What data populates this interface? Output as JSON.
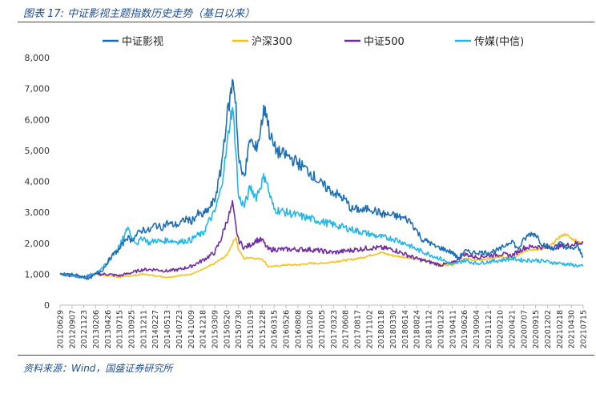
{
  "figure": {
    "title": "图表 17:  中证影视主题指数历史走势（基日以来）",
    "source": "资料来源：Wind，国盛证券研究所"
  },
  "chart_data": {
    "type": "line",
    "title": "",
    "xlabel": "",
    "ylabel": "",
    "ylim": [
      0,
      8000
    ],
    "yticks": [
      0,
      1000,
      2000,
      3000,
      4000,
      5000,
      6000,
      7000,
      8000
    ],
    "ytick_labels": [
      "0",
      "1,000",
      "2,000",
      "3,000",
      "4,000",
      "5,000",
      "6,000",
      "7,000",
      "8,000"
    ],
    "x_tick_labels": [
      "20120629",
      "20120907",
      "20121123",
      "20130206",
      "20130426",
      "20130715",
      "20130925",
      "20131211",
      "20140227",
      "20140513",
      "20140723",
      "20141009",
      "20141218",
      "20150309",
      "20150520",
      "20150730",
      "20151019",
      "20151228",
      "20160315",
      "20160526",
      "20160808",
      "20161020",
      "20170105",
      "20170323",
      "20170608",
      "20170817",
      "20171102",
      "20180118",
      "20180330",
      "20180614",
      "20180824",
      "20181112",
      "20190123",
      "20190411",
      "20190626",
      "20190904",
      "20191121",
      "20200210",
      "20200421",
      "20200707",
      "20200915",
      "20201202",
      "20210218",
      "20210430",
      "20210715"
    ],
    "legend": [
      "中证影视",
      "沪深300",
      "中证500",
      "传媒(中信)"
    ],
    "legend_position": "top",
    "grid": false,
    "colors": {
      "中证影视": "#1f6fb4",
      "沪深300": "#f5c21b",
      "中证500": "#7030a0",
      "传媒(中信)": "#27b6e6"
    },
    "series": [
      {
        "name": "中证影视",
        "anchors": [
          [
            0,
            1000
          ],
          [
            1,
            1000
          ],
          [
            1.6,
            950
          ],
          [
            2,
            900
          ],
          [
            2.4,
            850
          ],
          [
            3,
            1000
          ],
          [
            3.6,
            1150
          ],
          [
            4,
            1400
          ],
          [
            4.5,
            1650
          ],
          [
            5,
            1800
          ],
          [
            5.6,
            2200
          ],
          [
            6,
            2100
          ],
          [
            6.5,
            2300
          ],
          [
            7,
            2450
          ],
          [
            7.5,
            2400
          ],
          [
            8,
            2600
          ],
          [
            8.5,
            2500
          ],
          [
            9,
            2650
          ],
          [
            9.5,
            2600
          ],
          [
            10,
            2600
          ],
          [
            10.6,
            2800
          ],
          [
            11,
            2700
          ],
          [
            11.6,
            2950
          ],
          [
            12,
            2900
          ],
          [
            12.5,
            3100
          ],
          [
            13,
            3400
          ],
          [
            13.5,
            4300
          ],
          [
            14,
            6000
          ],
          [
            14.3,
            6700
          ],
          [
            14.55,
            7300
          ],
          [
            14.8,
            6500
          ],
          [
            15,
            4800
          ],
          [
            15.3,
            4200
          ],
          [
            15.6,
            4400
          ],
          [
            16,
            5400
          ],
          [
            16.4,
            5000
          ],
          [
            16.8,
            5500
          ],
          [
            17,
            6000
          ],
          [
            17.25,
            6450
          ],
          [
            17.6,
            5600
          ],
          [
            18,
            5100
          ],
          [
            18.5,
            4900
          ],
          [
            19,
            4850
          ],
          [
            20,
            4600
          ],
          [
            21,
            4300
          ],
          [
            22,
            3900
          ],
          [
            23,
            3650
          ],
          [
            24,
            3400
          ],
          [
            24.5,
            3100
          ],
          [
            25,
            3100
          ],
          [
            25.5,
            3050
          ],
          [
            26,
            3150
          ],
          [
            27,
            2950
          ],
          [
            28,
            2900
          ],
          [
            29,
            2800
          ],
          [
            29.5,
            2700
          ],
          [
            30,
            2400
          ],
          [
            30.5,
            2100
          ],
          [
            31,
            2050
          ],
          [
            31.5,
            1900
          ],
          [
            32,
            1850
          ],
          [
            33,
            1700
          ],
          [
            33.5,
            1500
          ],
          [
            34,
            1750
          ],
          [
            34.5,
            1700
          ],
          [
            35,
            1700
          ],
          [
            36,
            1700
          ],
          [
            37,
            1800
          ],
          [
            38,
            2100
          ],
          [
            38.5,
            1800
          ],
          [
            39,
            2100
          ],
          [
            39.5,
            2300
          ],
          [
            40,
            2300
          ],
          [
            40.5,
            2000
          ],
          [
            41,
            1900
          ],
          [
            41.5,
            1800
          ],
          [
            42,
            2000
          ],
          [
            42.5,
            1900
          ],
          [
            43,
            1800
          ],
          [
            43.5,
            1900
          ],
          [
            44,
            1550
          ]
        ]
      },
      {
        "name": "沪深300",
        "anchors": [
          [
            0,
            1000
          ],
          [
            1,
            950
          ],
          [
            2,
            900
          ],
          [
            3,
            1000
          ],
          [
            4,
            950
          ],
          [
            5,
            900
          ],
          [
            6,
            950
          ],
          [
            7,
            1000
          ],
          [
            8,
            950
          ],
          [
            9,
            900
          ],
          [
            10,
            950
          ],
          [
            11,
            1000
          ],
          [
            12,
            1150
          ],
          [
            13,
            1350
          ],
          [
            14,
            1600
          ],
          [
            14.5,
            2000
          ],
          [
            14.8,
            2200
          ],
          [
            15,
            1800
          ],
          [
            15.5,
            1500
          ],
          [
            16,
            1550
          ],
          [
            16.5,
            1500
          ],
          [
            17,
            1500
          ],
          [
            17.5,
            1250
          ],
          [
            18,
            1250
          ],
          [
            19,
            1300
          ],
          [
            20,
            1300
          ],
          [
            21,
            1350
          ],
          [
            22,
            1350
          ],
          [
            23,
            1400
          ],
          [
            24,
            1450
          ],
          [
            25,
            1500
          ],
          [
            26,
            1600
          ],
          [
            27,
            1700
          ],
          [
            27.5,
            1650
          ],
          [
            28,
            1600
          ],
          [
            29,
            1550
          ],
          [
            30,
            1500
          ],
          [
            31,
            1400
          ],
          [
            32,
            1300
          ],
          [
            33,
            1300
          ],
          [
            34,
            1500
          ],
          [
            35,
            1450
          ],
          [
            36,
            1500
          ],
          [
            37,
            1550
          ],
          [
            38,
            1500
          ],
          [
            39,
            1750
          ],
          [
            40,
            1800
          ],
          [
            41,
            1850
          ],
          [
            41.5,
            2000
          ],
          [
            42,
            2200
          ],
          [
            42.5,
            2300
          ],
          [
            43,
            2150
          ],
          [
            44,
            2000
          ]
        ]
      },
      {
        "name": "中证500",
        "anchors": [
          [
            0,
            1000
          ],
          [
            1,
            950
          ],
          [
            2,
            900
          ],
          [
            3,
            1000
          ],
          [
            4,
            1000
          ],
          [
            5,
            950
          ],
          [
            6,
            1050
          ],
          [
            7,
            1150
          ],
          [
            8,
            1150
          ],
          [
            9,
            1100
          ],
          [
            10,
            1150
          ],
          [
            11,
            1250
          ],
          [
            12,
            1450
          ],
          [
            13,
            1700
          ],
          [
            13.5,
            2100
          ],
          [
            14,
            2700
          ],
          [
            14.3,
            3000
          ],
          [
            14.5,
            3250
          ],
          [
            14.8,
            2500
          ],
          [
            15,
            2100
          ],
          [
            15.5,
            1850
          ],
          [
            16,
            1950
          ],
          [
            16.5,
            2100
          ],
          [
            17,
            2100
          ],
          [
            17.5,
            1800
          ],
          [
            18,
            1800
          ],
          [
            19,
            1800
          ],
          [
            20,
            1800
          ],
          [
            21,
            1800
          ],
          [
            22,
            1750
          ],
          [
            23,
            1700
          ],
          [
            24,
            1750
          ],
          [
            25,
            1800
          ],
          [
            26,
            1850
          ],
          [
            27,
            1850
          ],
          [
            28,
            1800
          ],
          [
            29,
            1650
          ],
          [
            30,
            1500
          ],
          [
            31,
            1400
          ],
          [
            32,
            1300
          ],
          [
            33,
            1350
          ],
          [
            34,
            1650
          ],
          [
            35,
            1550
          ],
          [
            36,
            1600
          ],
          [
            37,
            1650
          ],
          [
            38,
            1600
          ],
          [
            39,
            1850
          ],
          [
            40,
            1900
          ],
          [
            41,
            1850
          ],
          [
            42,
            1900
          ],
          [
            43,
            1950
          ],
          [
            44,
            2050
          ]
        ]
      },
      {
        "name": "传媒(中信)",
        "anchors": [
          [
            0,
            1000
          ],
          [
            1,
            950
          ],
          [
            2,
            900
          ],
          [
            3,
            1050
          ],
          [
            4,
            1350
          ],
          [
            4.5,
            1700
          ],
          [
            5,
            1900
          ],
          [
            5.5,
            2300
          ],
          [
            5.7,
            2550
          ],
          [
            6,
            2200
          ],
          [
            6.5,
            2000
          ],
          [
            7,
            2200
          ],
          [
            7.5,
            2000
          ],
          [
            8,
            2100
          ],
          [
            8.5,
            2050
          ],
          [
            9,
            2100
          ],
          [
            10,
            2050
          ],
          [
            11,
            2100
          ],
          [
            11.5,
            2250
          ],
          [
            12,
            2300
          ],
          [
            12.5,
            2700
          ],
          [
            13,
            3000
          ],
          [
            13.5,
            3700
          ],
          [
            14,
            5000
          ],
          [
            14.3,
            6000
          ],
          [
            14.5,
            6400
          ],
          [
            14.8,
            5000
          ],
          [
            15,
            3500
          ],
          [
            15.5,
            3200
          ],
          [
            16,
            3800
          ],
          [
            16.5,
            3500
          ],
          [
            17,
            4000
          ],
          [
            17.25,
            4200
          ],
          [
            17.6,
            3600
          ],
          [
            18,
            3100
          ],
          [
            19,
            3000
          ],
          [
            20,
            2900
          ],
          [
            21,
            2800
          ],
          [
            22,
            2700
          ],
          [
            23,
            2600
          ],
          [
            24,
            2500
          ],
          [
            25,
            2400
          ],
          [
            26,
            2300
          ],
          [
            27,
            2200
          ],
          [
            28,
            2150
          ],
          [
            29,
            2000
          ],
          [
            30,
            1800
          ],
          [
            31,
            1650
          ],
          [
            32,
            1500
          ],
          [
            33,
            1300
          ],
          [
            34,
            1450
          ],
          [
            35,
            1350
          ],
          [
            36,
            1400
          ],
          [
            37,
            1450
          ],
          [
            38,
            1500
          ],
          [
            39,
            1450
          ],
          [
            40,
            1450
          ],
          [
            41,
            1400
          ],
          [
            42,
            1350
          ],
          [
            43,
            1300
          ],
          [
            44,
            1250
          ]
        ]
      }
    ]
  }
}
